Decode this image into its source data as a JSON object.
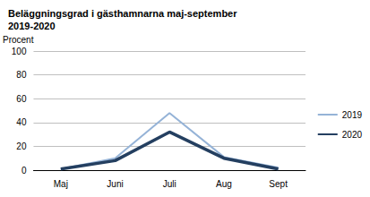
{
  "chart_data": {
    "type": "line",
    "title": "Beläggningsgrad i gästhamnarna maj-september 2019-2020",
    "y_label": "Procent",
    "categories": [
      "Maj",
      "Juni",
      "Juli",
      "Aug",
      "Sept"
    ],
    "series": [
      {
        "name": "2019",
        "color": "#95b3d7",
        "values": [
          1,
          10,
          48,
          11,
          2
        ]
      },
      {
        "name": "2020",
        "color": "#243f60",
        "values": [
          1,
          8,
          32,
          10,
          1
        ]
      }
    ],
    "ylim": [
      0,
      100
    ],
    "yticks": [
      0,
      20,
      40,
      60,
      80,
      100
    ],
    "grid": true,
    "legend": "right"
  }
}
